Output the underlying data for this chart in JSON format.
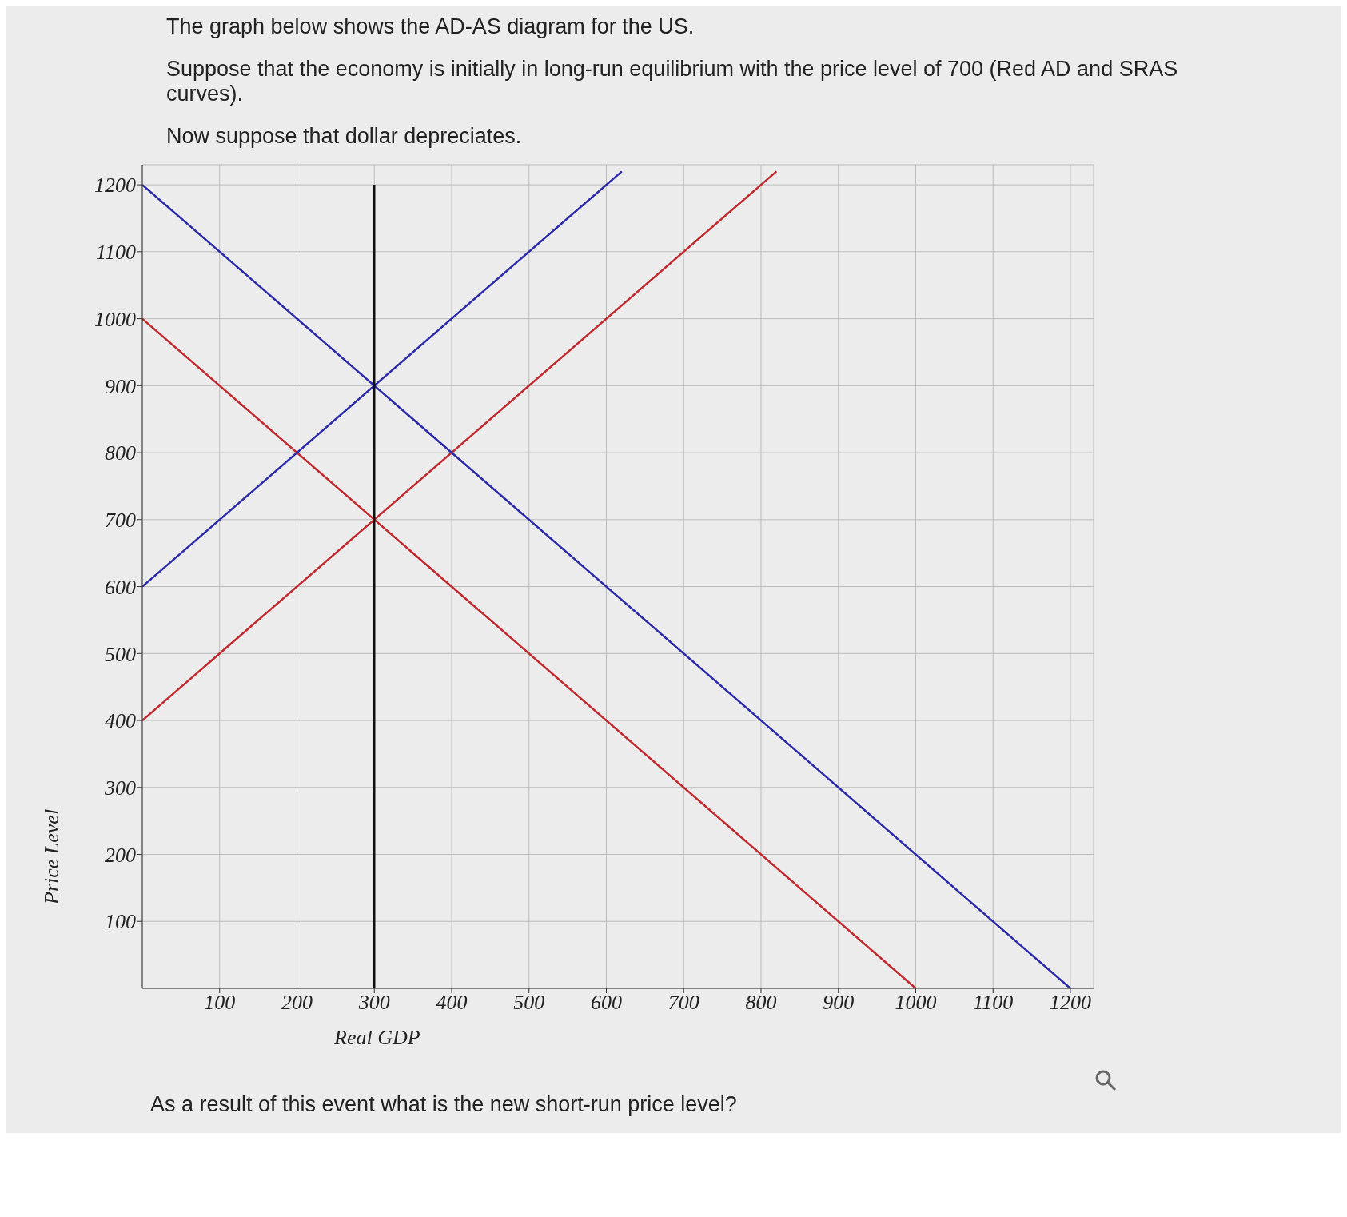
{
  "chart_data": {
    "type": "line",
    "title": "The graph below shows the AD-AS diagram for the US.",
    "subtitle": "Suppose that the economy is initially in long-run equilibrium with the price level of 700 (Red AD and SRAS curves).",
    "annotations": [
      "Now suppose that dollar depreciates.",
      "As a result of this event what is the new short-run price level?"
    ],
    "xlabel": "Real GDP",
    "ylabel": "Price Level",
    "series": [
      {
        "color": "#c0282d",
        "x": [
          0,
          1000
        ],
        "values": [
          1000,
          0
        ]
      },
      {
        "color": "#c0282d",
        "x": [
          0,
          820
        ],
        "values": [
          400,
          1220
        ]
      },
      {
        "color": "#2a2aa8",
        "x": [
          0,
          1200
        ],
        "values": [
          1200,
          0
        ]
      },
      {
        "color": "#2a2aa8",
        "x": [
          0,
          620
        ],
        "values": [
          600,
          1220
        ]
      },
      {
        "color": "#111111",
        "x": [
          300,
          300
        ],
        "values": [
          0,
          1200
        ]
      }
    ],
    "xlim": [
      0,
      1230
    ],
    "ylim": [
      0,
      1230
    ],
    "xticks": [
      100,
      200,
      300,
      400,
      500,
      600,
      700,
      800,
      900,
      1000,
      1100,
      1200
    ],
    "yticks": [
      100,
      200,
      300,
      400,
      500,
      600,
      700,
      800,
      900,
      1000,
      1100,
      1200
    ],
    "grid": true,
    "marker": "none",
    "line_style": "solid"
  }
}
